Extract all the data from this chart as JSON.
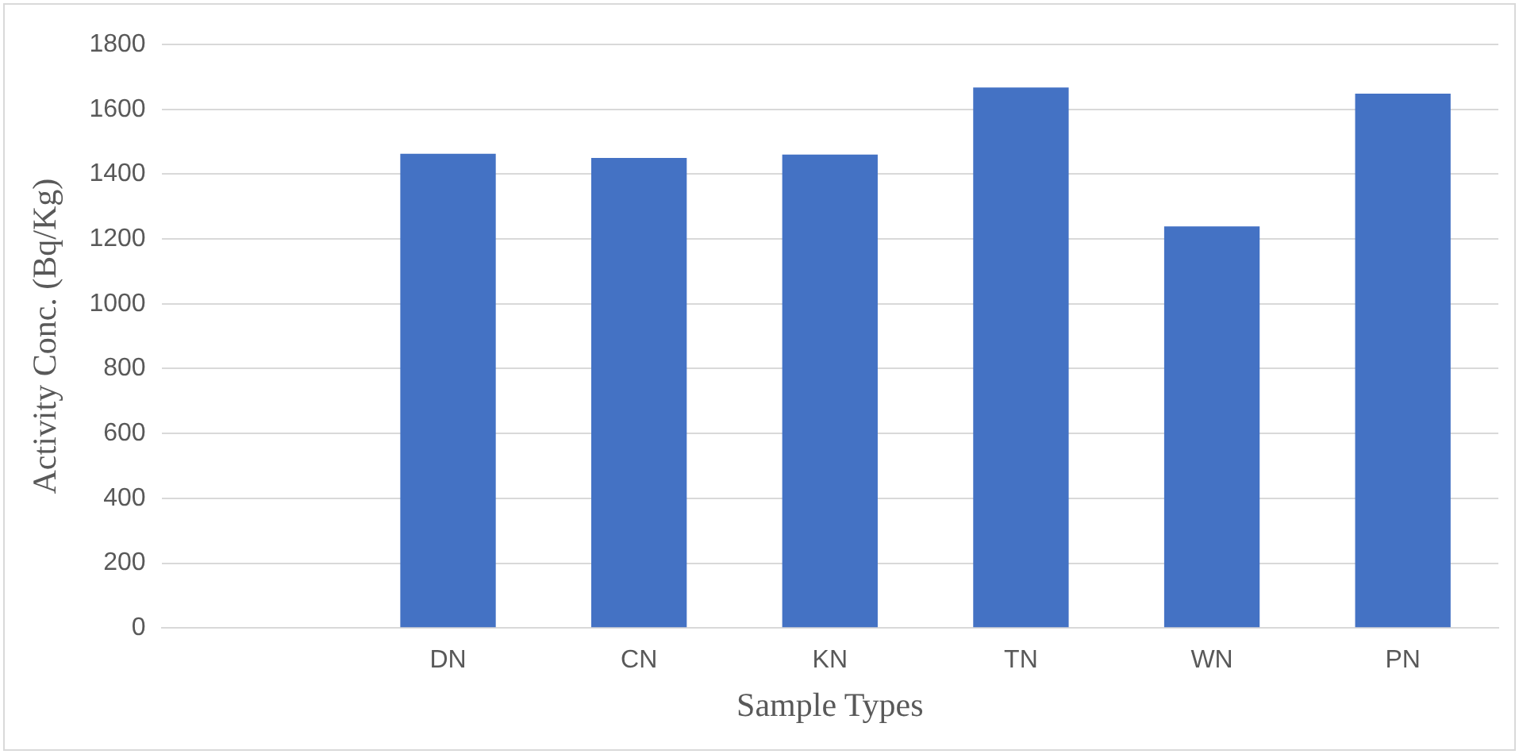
{
  "chart_data": {
    "type": "bar",
    "xlabel": "Sample Types",
    "ylabel": "Activity Conc. (Bq/Kg)",
    "categories": [
      null,
      "DN",
      "CN",
      "KN",
      "TN",
      "WN",
      "PN"
    ],
    "values": [
      null,
      1463,
      1450,
      1460,
      1667,
      1239,
      1648
    ],
    "color": "#4472c4",
    "ylim": [
      0,
      1800
    ],
    "yticks": [
      0,
      200,
      400,
      600,
      800,
      1000,
      1200,
      1400,
      1600,
      1800
    ],
    "grid": "y",
    "legend": false
  }
}
